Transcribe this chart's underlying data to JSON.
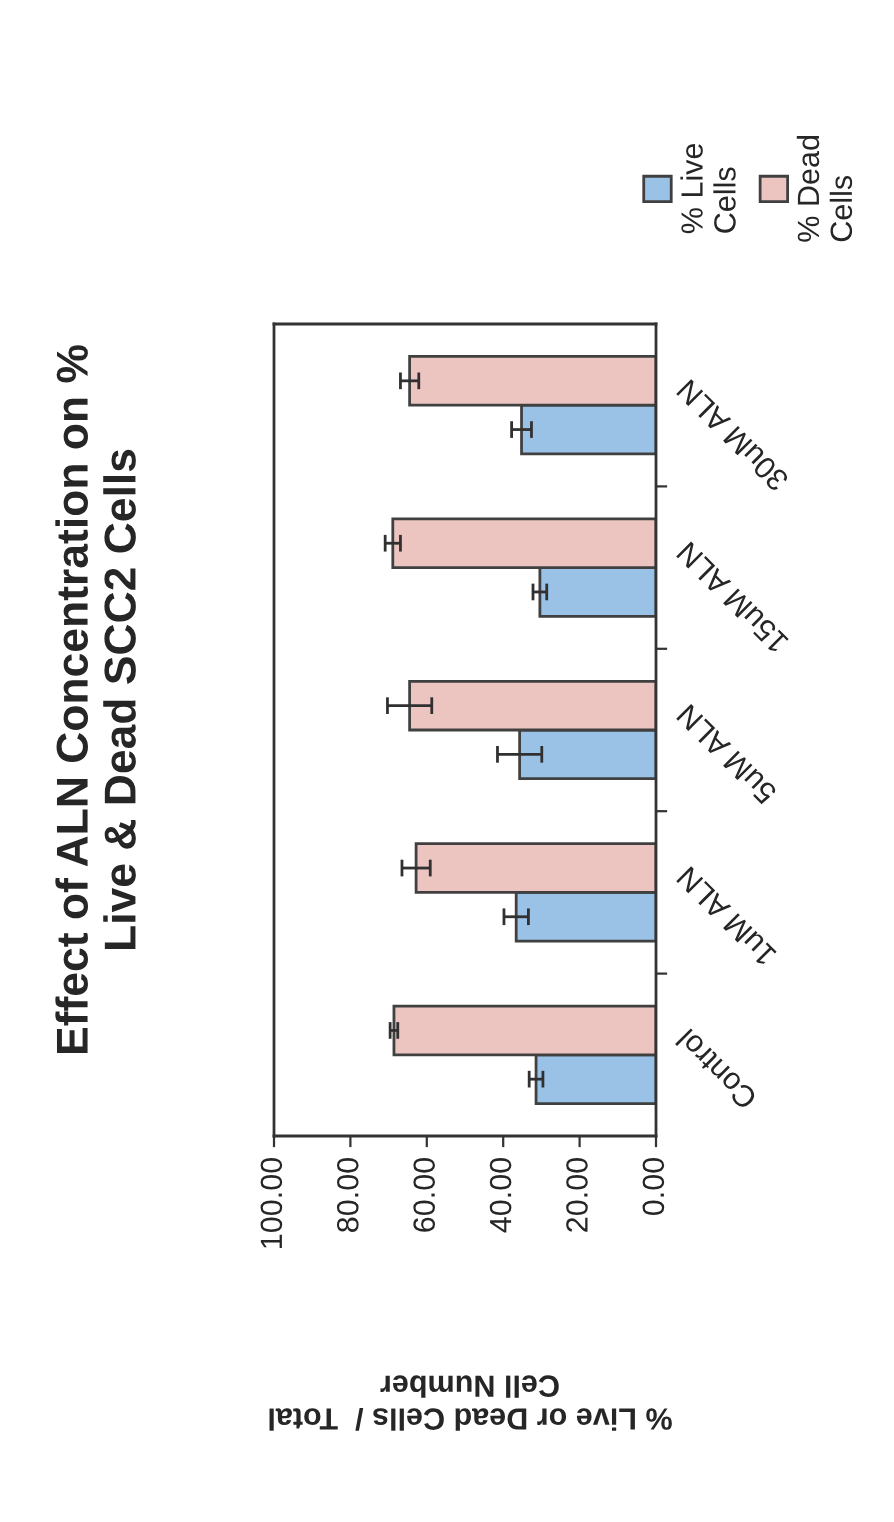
{
  "chart_data": {
    "type": "bar",
    "orientation": "horizontal",
    "title": "Effect of ALN Concentration on %\nLive & Dead SCC2 Cells",
    "xlabel": "% Live or Dead Cells /  Total\nCell Number",
    "categories": [
      "30uM ALN",
      "15uM ALN",
      "5uM ALN",
      "1uM ALN",
      "Control"
    ],
    "series": [
      {
        "name": "% Live\nCells",
        "color": "#99c2e6",
        "values": [
          35.2,
          30.4,
          35.7,
          36.6,
          31.4
        ],
        "errors": [
          2.6,
          1.8,
          5.8,
          3.2,
          1.8
        ]
      },
      {
        "name": "% Dead\nCells",
        "color": "#ecc4c0",
        "values": [
          64.5,
          68.9,
          64.5,
          62.8,
          68.6
        ],
        "errors": [
          2.4,
          2,
          5.8,
          3.7,
          1
        ]
      }
    ],
    "xlim": [
      100,
      0
    ],
    "xticks": [
      {
        "value": 100,
        "label": "100.00"
      },
      {
        "value": 80,
        "label": "80.00"
      },
      {
        "value": 60,
        "label": "60.00"
      },
      {
        "value": 40,
        "label": "40.00"
      },
      {
        "value": 20,
        "label": "20.00"
      },
      {
        "value": 0,
        "label": "0.00"
      }
    ],
    "grid": false,
    "legend": "top"
  }
}
